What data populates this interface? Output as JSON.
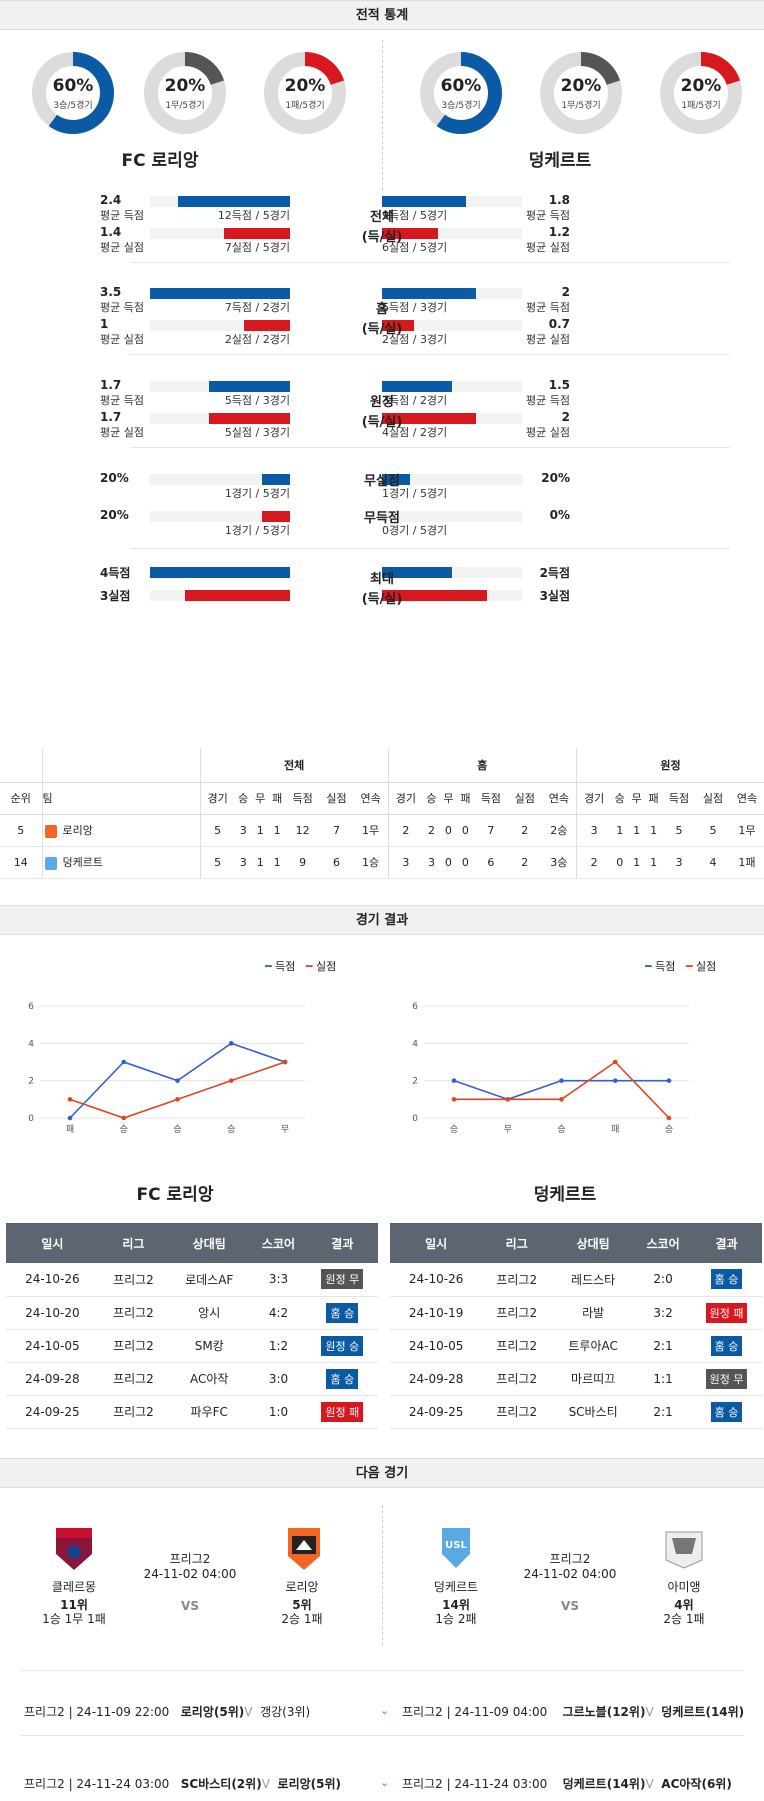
{
  "sections": {
    "stats": "전적 통계",
    "results": "경기 결과",
    "next": "다음 경기"
  },
  "home_team": "FC 로리앙",
  "away_team": "덩케르트",
  "donuts": [
    {
      "pct": "60%",
      "sub": "3승/5경기",
      "value": 0.6,
      "color": "#0a5aa6"
    },
    {
      "pct": "20%",
      "sub": "1무/5경기",
      "value": 0.2,
      "color": "#555555"
    },
    {
      "pct": "20%",
      "sub": "1패/5경기",
      "value": 0.2,
      "color": "#d7181e"
    },
    {
      "pct": "60%",
      "sub": "3승/5경기",
      "value": 0.6,
      "color": "#0a5aa6"
    },
    {
      "pct": "20%",
      "sub": "1무/5경기",
      "value": 0.2,
      "color": "#555555"
    },
    {
      "pct": "20%",
      "sub": "1패/5경기",
      "value": 0.2,
      "color": "#d7181e"
    }
  ],
  "stat_groups": [
    {
      "cat": "전체\n(득/실)",
      "rows": [
        {
          "lv": "2.4",
          "ll": "평균 득점",
          "lt": "12득점 / 5경기",
          "lw": 0.8,
          "rv": "1.8",
          "rl": "평균 득점",
          "rt": "9득점 / 5경기",
          "rw": 0.6,
          "color": "blue"
        },
        {
          "lv": "1.4",
          "ll": "평균 실점",
          "lt": "7실점 / 5경기",
          "lw": 0.47,
          "rv": "1.2",
          "rl": "평균 실점",
          "rt": "6실점 / 5경기",
          "rw": 0.4,
          "color": "red"
        }
      ]
    },
    {
      "cat": "홈\n(득/실)",
      "rows": [
        {
          "lv": "3.5",
          "ll": "평균 득점",
          "lt": "7득점 / 2경기",
          "lw": 1.0,
          "rv": "2",
          "rl": "평균 득점",
          "rt": "6득점 / 3경기",
          "rw": 0.67,
          "color": "blue"
        },
        {
          "lv": "1",
          "ll": "평균 실점",
          "lt": "2실점 / 2경기",
          "lw": 0.33,
          "rv": "0.7",
          "rl": "평균 실점",
          "rt": "2실점 / 3경기",
          "rw": 0.23,
          "color": "red"
        }
      ]
    },
    {
      "cat": "원정\n(득/실)",
      "rows": [
        {
          "lv": "1.7",
          "ll": "평균 득점",
          "lt": "5득점 / 3경기",
          "lw": 0.58,
          "rv": "1.5",
          "rl": "평균 득점",
          "rt": "3득점 / 2경기",
          "rw": 0.5,
          "color": "blue"
        },
        {
          "lv": "1.7",
          "ll": "평균 실점",
          "lt": "5실점 / 3경기",
          "lw": 0.58,
          "rv": "2",
          "rl": "평균 실점",
          "rt": "4실점 / 2경기",
          "rw": 0.67,
          "color": "red"
        }
      ]
    }
  ],
  "clean": [
    {
      "cat": "무실점",
      "lv": "20%",
      "lt": "1경기 / 5경기",
      "lw": 0.2,
      "rv": "20%",
      "rt": "1경기 / 5경기",
      "rw": 0.2,
      "color": "blue"
    },
    {
      "cat": "무득점",
      "lv": "20%",
      "lt": "1경기 / 5경기",
      "lw": 0.2,
      "rv": "0%",
      "rt": "0경기 / 5경기",
      "rw": 0.0,
      "color": "red"
    }
  ],
  "max": {
    "cat": "최대\n(득/실)",
    "rows": [
      {
        "lv": "4득점",
        "lw": 1.0,
        "rv": "2득점",
        "rw": 0.5,
        "color": "blue"
      },
      {
        "lv": "3실점",
        "lw": 0.75,
        "rv": "3실점",
        "rw": 0.75,
        "color": "red"
      }
    ]
  },
  "standings": {
    "groups": [
      "전체",
      "홈",
      "원정"
    ],
    "headers": [
      "순위",
      "팀",
      "경기",
      "승",
      "무",
      "패",
      "득점",
      "실점",
      "연속",
      "경기",
      "승",
      "무",
      "패",
      "득점",
      "실점",
      "연속",
      "경기",
      "승",
      "무",
      "패",
      "득점",
      "실점",
      "연속"
    ],
    "rows": [
      [
        "5",
        "로리앙",
        "5",
        "3",
        "1",
        "1",
        "12",
        "7",
        "1무",
        "2",
        "2",
        "0",
        "0",
        "7",
        "2",
        "2승",
        "3",
        "1",
        "1",
        "1",
        "5",
        "5",
        "1무"
      ],
      [
        "14",
        "덩케르트",
        "5",
        "3",
        "1",
        "1",
        "9",
        "6",
        "1승",
        "3",
        "3",
        "0",
        "0",
        "6",
        "2",
        "3승",
        "2",
        "0",
        "1",
        "1",
        "3",
        "4",
        "1패"
      ]
    ]
  },
  "legend": {
    "scored": "득점",
    "conceded": "실점"
  },
  "chart_data": [
    {
      "type": "line",
      "categories": [
        "패",
        "승",
        "승",
        "승",
        "무"
      ],
      "ylim": [
        0,
        6
      ],
      "yticks": [
        "0",
        "2",
        "4",
        "6"
      ],
      "series": [
        {
          "name": "득점",
          "values": [
            0,
            3,
            2,
            4,
            3
          ],
          "color": "#2f5fd0"
        },
        {
          "name": "실점",
          "values": [
            1,
            0,
            1,
            2,
            3
          ],
          "color": "#e0451f"
        }
      ]
    },
    {
      "type": "line",
      "categories": [
        "승",
        "무",
        "승",
        "패",
        "승"
      ],
      "ylim": [
        0,
        6
      ],
      "yticks": [
        "0",
        "2",
        "4",
        "6"
      ],
      "series": [
        {
          "name": "득점",
          "values": [
            2,
            1,
            2,
            2,
            2
          ],
          "color": "#2f5fd0"
        },
        {
          "name": "실점",
          "values": [
            1,
            1,
            1,
            3,
            0
          ],
          "color": "#e0451f"
        }
      ]
    }
  ],
  "results_headers": [
    "일시",
    "리그",
    "상대팀",
    "스코어",
    "결과"
  ],
  "results_left": [
    [
      "24-10-26",
      "프리그2",
      "로데스AF",
      "3:3",
      "원정 무",
      "gray"
    ],
    [
      "24-10-20",
      "프리그2",
      "앙시",
      "4:2",
      "홈 승",
      "blue"
    ],
    [
      "24-10-05",
      "프리그2",
      "SM캉",
      "1:2",
      "원정 승",
      "blue"
    ],
    [
      "24-09-28",
      "프리그2",
      "AC아작",
      "3:0",
      "홈 승",
      "blue"
    ],
    [
      "24-09-25",
      "프리그2",
      "파우FC",
      "1:0",
      "원정 패",
      "red"
    ]
  ],
  "results_right": [
    [
      "24-10-26",
      "프리그2",
      "레드스타",
      "2:0",
      "홈 승",
      "blue"
    ],
    [
      "24-10-19",
      "프리그2",
      "라발",
      "3:2",
      "원정 패",
      "red"
    ],
    [
      "24-10-05",
      "프리그2",
      "트루아AC",
      "2:1",
      "홈 승",
      "blue"
    ],
    [
      "24-09-28",
      "프리그2",
      "마르띠끄",
      "1:1",
      "원정 무",
      "gray"
    ],
    [
      "24-09-25",
      "프리그2",
      "SC바스티",
      "2:1",
      "홈 승",
      "blue"
    ]
  ],
  "next": [
    {
      "league": "프리그2",
      "time": "24-11-02 04:00",
      "vs": "VS",
      "home": {
        "name": "클레르몽",
        "rank": "11위",
        "rec": "1승 1무 1패"
      },
      "away": {
        "name": "로리앙",
        "rank": "5위",
        "rec": "2승 1패"
      }
    },
    {
      "league": "프리그2",
      "time": "24-11-02 04:00",
      "vs": "VS",
      "home": {
        "name": "덩케르트",
        "rank": "14위",
        "rec": "1승 2패"
      },
      "away": {
        "name": "아미앵",
        "rank": "4위",
        "rec": "2승 1패"
      }
    }
  ],
  "upcoming": [
    {
      "left": "프리그2 | 24-11-09 22:00",
      "t1": "로리앙(5위)",
      "mark": "V",
      "t2": "갱강(3위)"
    },
    {
      "left": "프리그2 | 24-11-09 04:00",
      "t1": "그르노블(12위)",
      "mark": "V",
      "t2": "덩케르트(14위)"
    },
    {
      "left": "프리그2 | 24-11-24 03:00",
      "t1": "SC바스티(2위)",
      "mark": "V",
      "t2": "로리앙(5위)"
    },
    {
      "left": "프리그2 | 24-11-24 03:00",
      "t1": "덩케르트(14위)",
      "mark": "V",
      "t2": "AC아작(6위)"
    }
  ]
}
